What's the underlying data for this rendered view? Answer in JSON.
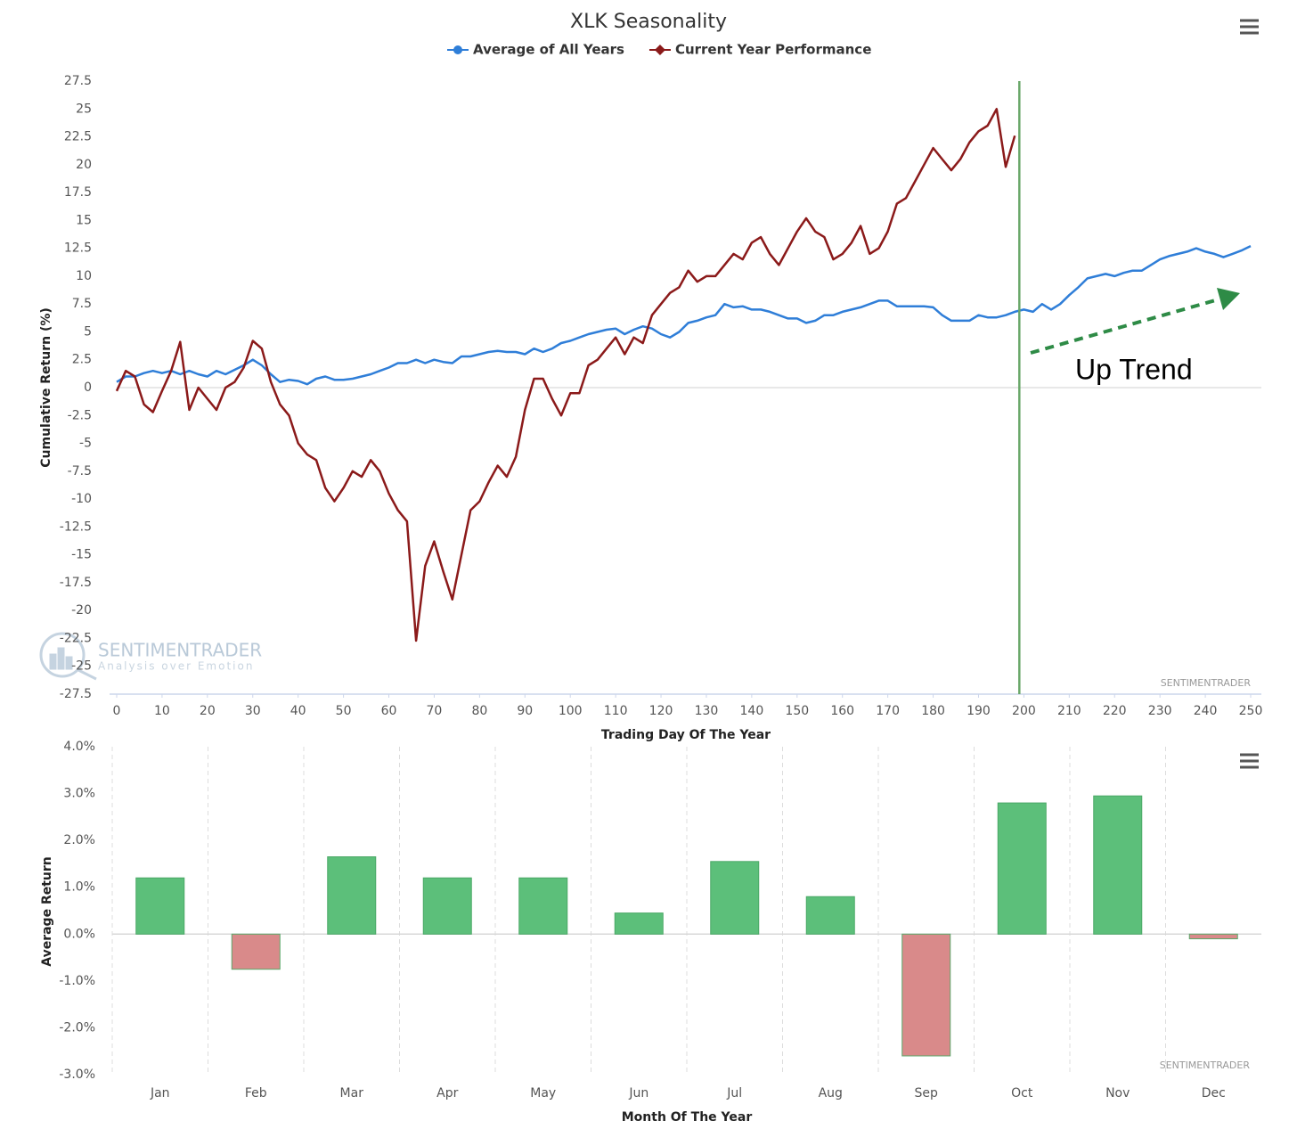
{
  "chart_data": [
    {
      "type": "line",
      "title": "XLK Seasonality",
      "x_label": "Trading Day Of The Year",
      "y_label": "Cumulative Return (%)",
      "annotation": "Up Trend",
      "watermark": "SENTIMENTRADER",
      "logo": {
        "name": "SENTIMENTRADER",
        "tagline": "Analysis over Emotion"
      },
      "plot_line_x": 199,
      "plot_line_color": "#6aa86a",
      "xlim": [
        0,
        250
      ],
      "xticks": [
        0,
        10,
        20,
        30,
        40,
        50,
        60,
        70,
        80,
        90,
        100,
        110,
        120,
        130,
        140,
        150,
        160,
        170,
        180,
        190,
        200,
        210,
        220,
        230,
        240,
        250
      ],
      "ylim": [
        -27.5,
        27.5
      ],
      "yticks": [
        -27.5,
        -25,
        -22.5,
        -20,
        -17.5,
        -15,
        -12.5,
        -10,
        -7.5,
        -5,
        -2.5,
        0,
        2.5,
        5,
        7.5,
        10,
        12.5,
        15,
        17.5,
        20,
        22.5,
        25,
        27.5
      ],
      "x": [
        0,
        2,
        4,
        6,
        8,
        10,
        12,
        14,
        16,
        18,
        20,
        22,
        24,
        26,
        28,
        30,
        32,
        34,
        36,
        38,
        40,
        42,
        44,
        46,
        48,
        50,
        52,
        54,
        56,
        58,
        60,
        62,
        64,
        66,
        68,
        70,
        72,
        74,
        76,
        78,
        80,
        82,
        84,
        86,
        88,
        90,
        92,
        94,
        96,
        98,
        100,
        102,
        104,
        106,
        108,
        110,
        112,
        114,
        116,
        118,
        120,
        122,
        124,
        126,
        128,
        130,
        132,
        134,
        136,
        138,
        140,
        142,
        144,
        146,
        148,
        150,
        152,
        154,
        156,
        158,
        160,
        162,
        164,
        166,
        168,
        170,
        172,
        174,
        176,
        178,
        180,
        182,
        184,
        186,
        188,
        190,
        192,
        194,
        196,
        198,
        200,
        202,
        204,
        206,
        208,
        210,
        212,
        214,
        216,
        218,
        220,
        222,
        224,
        226,
        228,
        230,
        232,
        234,
        236,
        238,
        240,
        242,
        244,
        246,
        248,
        250
      ],
      "series": [
        {
          "name": "Average of All Years",
          "color": "#2f7ed8",
          "marker": "circle",
          "values": [
            0.5,
            1,
            1,
            1.3,
            1.5,
            1.3,
            1.5,
            1.2,
            1.5,
            1.2,
            1,
            1.5,
            1.2,
            1.6,
            2,
            2.5,
            2,
            1.2,
            0.5,
            0.7,
            0.6,
            0.3,
            0.8,
            1,
            0.7,
            0.7,
            0.8,
            1,
            1.2,
            1.5,
            1.8,
            2.2,
            2.2,
            2.5,
            2.2,
            2.5,
            2.3,
            2.2,
            2.8,
            2.8,
            3,
            3.2,
            3.3,
            3.2,
            3.2,
            3,
            3.5,
            3.2,
            3.5,
            4,
            4.2,
            4.5,
            4.8,
            5,
            5.2,
            5.3,
            4.8,
            5.2,
            5.5,
            5.3,
            4.8,
            4.5,
            5,
            5.8,
            6,
            6.3,
            6.5,
            7.5,
            7.2,
            7.3,
            7,
            7,
            6.8,
            6.5,
            6.2,
            6.2,
            5.8,
            6,
            6.5,
            6.5,
            6.8,
            7,
            7.2,
            7.5,
            7.8,
            7.8,
            7.3,
            7.3,
            7.3,
            7.3,
            7.2,
            6.5,
            6,
            6,
            6,
            6.5,
            6.3,
            6.3,
            6.5,
            6.8,
            7,
            6.8,
            7.5,
            7,
            7.5,
            8.3,
            9,
            9.8,
            10,
            10.2,
            10,
            10.3,
            10.5,
            10.5,
            11,
            11.5,
            11.8,
            12,
            12.2,
            12.5,
            12.2,
            12,
            11.7,
            12,
            12.3,
            12.7
          ]
        },
        {
          "name": "Current Year Performance",
          "color": "#8b1a1a",
          "marker": "diamond",
          "values": [
            -0.3,
            1.5,
            1,
            -1.5,
            -2.2,
            -0.3,
            1.5,
            4.1,
            -2,
            0,
            -1,
            -2,
            0,
            0.5,
            1.8,
            4.2,
            3.5,
            0.5,
            -1.5,
            -2.5,
            -5,
            -6,
            -6.5,
            -9,
            -10.2,
            -9,
            -7.5,
            -8,
            -6.5,
            -7.5,
            -9.5,
            -11,
            -12,
            -22.7,
            -16,
            -13.8,
            -16.5,
            -19,
            -15,
            -11,
            -10.2,
            -8.5,
            -7,
            -8,
            -6.2,
            -2,
            0.8,
            0.8,
            -1,
            -2.5,
            -0.5,
            -0.5,
            2,
            2.5,
            3.5,
            4.5,
            3,
            4.5,
            4,
            6.5,
            7.5,
            8.5,
            9,
            10.5,
            9.5,
            10,
            10,
            11,
            12,
            11.5,
            13,
            13.5,
            12,
            11,
            12.5,
            14,
            15.2,
            14,
            13.5,
            11.5,
            12,
            13,
            14.5,
            12,
            12.5,
            14,
            16.5,
            17,
            18.5,
            20,
            21.5,
            20.5,
            19.5,
            20.5,
            22,
            23,
            23.5,
            25,
            19.8,
            22.6,
            null,
            null,
            null,
            null,
            null,
            null,
            null,
            null,
            null,
            null,
            null,
            null,
            null,
            null,
            null,
            null,
            null,
            null,
            null,
            null,
            null,
            null,
            null,
            null,
            null,
            null
          ]
        }
      ]
    },
    {
      "type": "bar",
      "x_label": "Month Of The Year",
      "y_label": "Average Return",
      "watermark": "SENTIMENTRADER",
      "categories": [
        "Jan",
        "Feb",
        "Mar",
        "Apr",
        "May",
        "Jun",
        "Jul",
        "Aug",
        "Sep",
        "Oct",
        "Nov",
        "Dec"
      ],
      "values": [
        1.2,
        -0.75,
        1.65,
        1.2,
        1.2,
        0.45,
        1.55,
        0.8,
        -2.6,
        2.8,
        2.95,
        -0.1
      ],
      "colors": {
        "positive": "#5cbf7a",
        "negative": "#d98a8a"
      },
      "ylim": [
        -3,
        4
      ],
      "yticks": [
        {
          "value": -3,
          "label": "-3.0%"
        },
        {
          "value": -2,
          "label": "-2.0%"
        },
        {
          "value": -1,
          "label": "-1.0%"
        },
        {
          "value": 0,
          "label": "0.0%"
        },
        {
          "value": 1,
          "label": "1.0%"
        },
        {
          "value": 2,
          "label": "2.0%"
        },
        {
          "value": 3,
          "label": "3.0%"
        },
        {
          "value": 4,
          "label": "4.0%"
        }
      ]
    }
  ]
}
